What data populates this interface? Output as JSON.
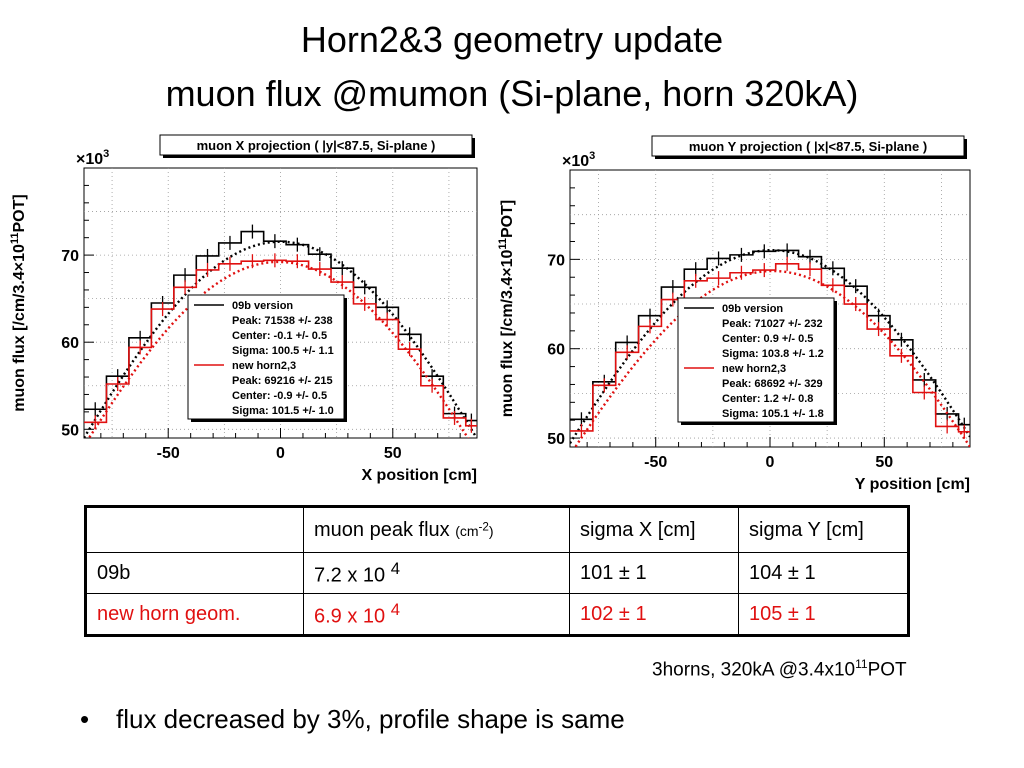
{
  "slide": {
    "title_line1": "Horn2&3 geometry update",
    "title_line2": "muon flux @mumon (Si-plane, horn 320kA)"
  },
  "chart_data": [
    {
      "type": "line",
      "title": "muon X projection ( |y|<87.5, Si-plane )",
      "xlabel": "X position [cm]",
      "ylabel_base": "muon flux [/cm/3.4",
      "ylabel_x": "×10",
      "ylabel_sup": "11",
      "ylabel_tail": "POT]",
      "y_multiplier_base": "×10",
      "y_multiplier_exp": "3",
      "xlim": [
        -87.5,
        87.5
      ],
      "ylim": [
        49,
        80
      ],
      "xticks": [
        -50,
        0,
        50
      ],
      "yticks": [
        50,
        60,
        70
      ],
      "grid": true,
      "legend_position": "bottom-center",
      "bin_edges": [
        -87.5,
        -77.5,
        -67.5,
        -57.5,
        -47.5,
        -37.5,
        -27.5,
        -17.5,
        -7.5,
        2.5,
        12.5,
        22.5,
        32.5,
        42.5,
        52.5,
        62.5,
        72.5,
        82.5,
        87.5
      ],
      "series": [
        {
          "name": "09b version",
          "color": "#000000",
          "values": [
            52.3,
            56.1,
            60.5,
            64.5,
            67.7,
            69.9,
            71.4,
            72.7,
            71.6,
            71.2,
            70.1,
            68.5,
            66.3,
            64.0,
            60.9,
            56.1,
            51.8,
            51.0
          ],
          "fit": {
            "peak": 71538,
            "center": -0.1,
            "sigma": 100.5
          },
          "legend_lines": [
            "Peak: 71538 +/- 238",
            "Center: -0.1 +/- 0.5",
            "Sigma: 100.5 +/- 1.1"
          ]
        },
        {
          "name": "new horn2,3",
          "color": "#e01010",
          "values": [
            50.8,
            55.2,
            59.4,
            63.8,
            66.3,
            68.3,
            69.0,
            69.3,
            69.4,
            69.3,
            68.4,
            66.9,
            64.4,
            62.6,
            59.2,
            55.0,
            51.3,
            50.4
          ],
          "fit": {
            "peak": 69216,
            "center": -0.9,
            "sigma": 101.5
          },
          "legend_lines": [
            "Peak: 69216 +/- 215",
            "Center: -0.9 +/- 0.5",
            "Sigma: 101.5 +/- 1.0"
          ]
        }
      ]
    },
    {
      "type": "line",
      "title": "muon Y projection ( |x|<87.5, Si-plane )",
      "xlabel": "Y position [cm]",
      "ylabel_base": "muon flux [/cm/3.4",
      "ylabel_x": "×10",
      "ylabel_sup": "11",
      "ylabel_tail": "POT]",
      "y_multiplier_base": "×10",
      "y_multiplier_exp": "3",
      "xlim": [
        -87.5,
        87.5
      ],
      "ylim": [
        49,
        80
      ],
      "xticks": [
        -50,
        0,
        50
      ],
      "yticks": [
        50,
        60,
        70
      ],
      "grid": true,
      "legend_position": "bottom-center",
      "bin_edges": [
        -87.5,
        -77.5,
        -67.5,
        -57.5,
        -47.5,
        -37.5,
        -27.5,
        -17.5,
        -7.5,
        2.5,
        12.5,
        22.5,
        32.5,
        42.5,
        52.5,
        62.5,
        72.5,
        82.5,
        87.5
      ],
      "series": [
        {
          "name": "09b version",
          "color": "#000000",
          "values": [
            52.1,
            56.3,
            60.7,
            63.7,
            66.9,
            68.9,
            70.1,
            70.5,
            70.9,
            71.0,
            70.3,
            69.0,
            67.0,
            63.7,
            61.0,
            56.5,
            52.7,
            51.5
          ],
          "fit": {
            "peak": 71027,
            "center": 0.9,
            "sigma": 103.8
          },
          "legend_lines": [
            "Peak: 71027 +/- 232",
            "Center: 0.9 +/- 0.5",
            "Sigma: 103.8 +/- 1.2"
          ]
        },
        {
          "name": "new horn2,3",
          "color": "#e01010",
          "values": [
            50.8,
            55.9,
            59.6,
            62.5,
            65.5,
            67.6,
            67.9,
            68.5,
            68.8,
            69.5,
            68.9,
            67.1,
            65.0,
            62.2,
            59.2,
            55.1,
            51.3,
            50.7
          ],
          "fit": {
            "peak": 68692,
            "center": 1.2,
            "sigma": 105.1
          },
          "legend_lines": [
            "Peak: 68692 +/- 329",
            "Center: 1.2 +/- 0.8",
            "Sigma: 105.1 +/- 1.8"
          ]
        }
      ]
    }
  ],
  "table": {
    "header": {
      "col0": "",
      "col1_text": "muon peak flux ",
      "col1_unit_base": "(cm",
      "col1_unit_exp": "-2",
      "col1_unit_close": ")",
      "col2": "sigma X [cm]",
      "col3": "sigma Y [cm]"
    },
    "rows": [
      {
        "label": "09b",
        "flux_base": "7.2 x 10 ",
        "flux_exp": "4",
        "sigma_x": "101 ± 1",
        "sigma_y": "104 ± 1",
        "color": "#000000"
      },
      {
        "label": "new horn geom.",
        "flux_base": "6.9 x 10 ",
        "flux_exp": "4",
        "sigma_x": "102 ± 1",
        "sigma_y": "105 ± 1",
        "color": "#e01010"
      }
    ]
  },
  "note": {
    "text": "3horns, 320kA @3.4x10",
    "sup": "11",
    "tail": "POT"
  },
  "bullet": {
    "symbol": "•",
    "text": "flux decreased by 3%, profile shape is same"
  }
}
